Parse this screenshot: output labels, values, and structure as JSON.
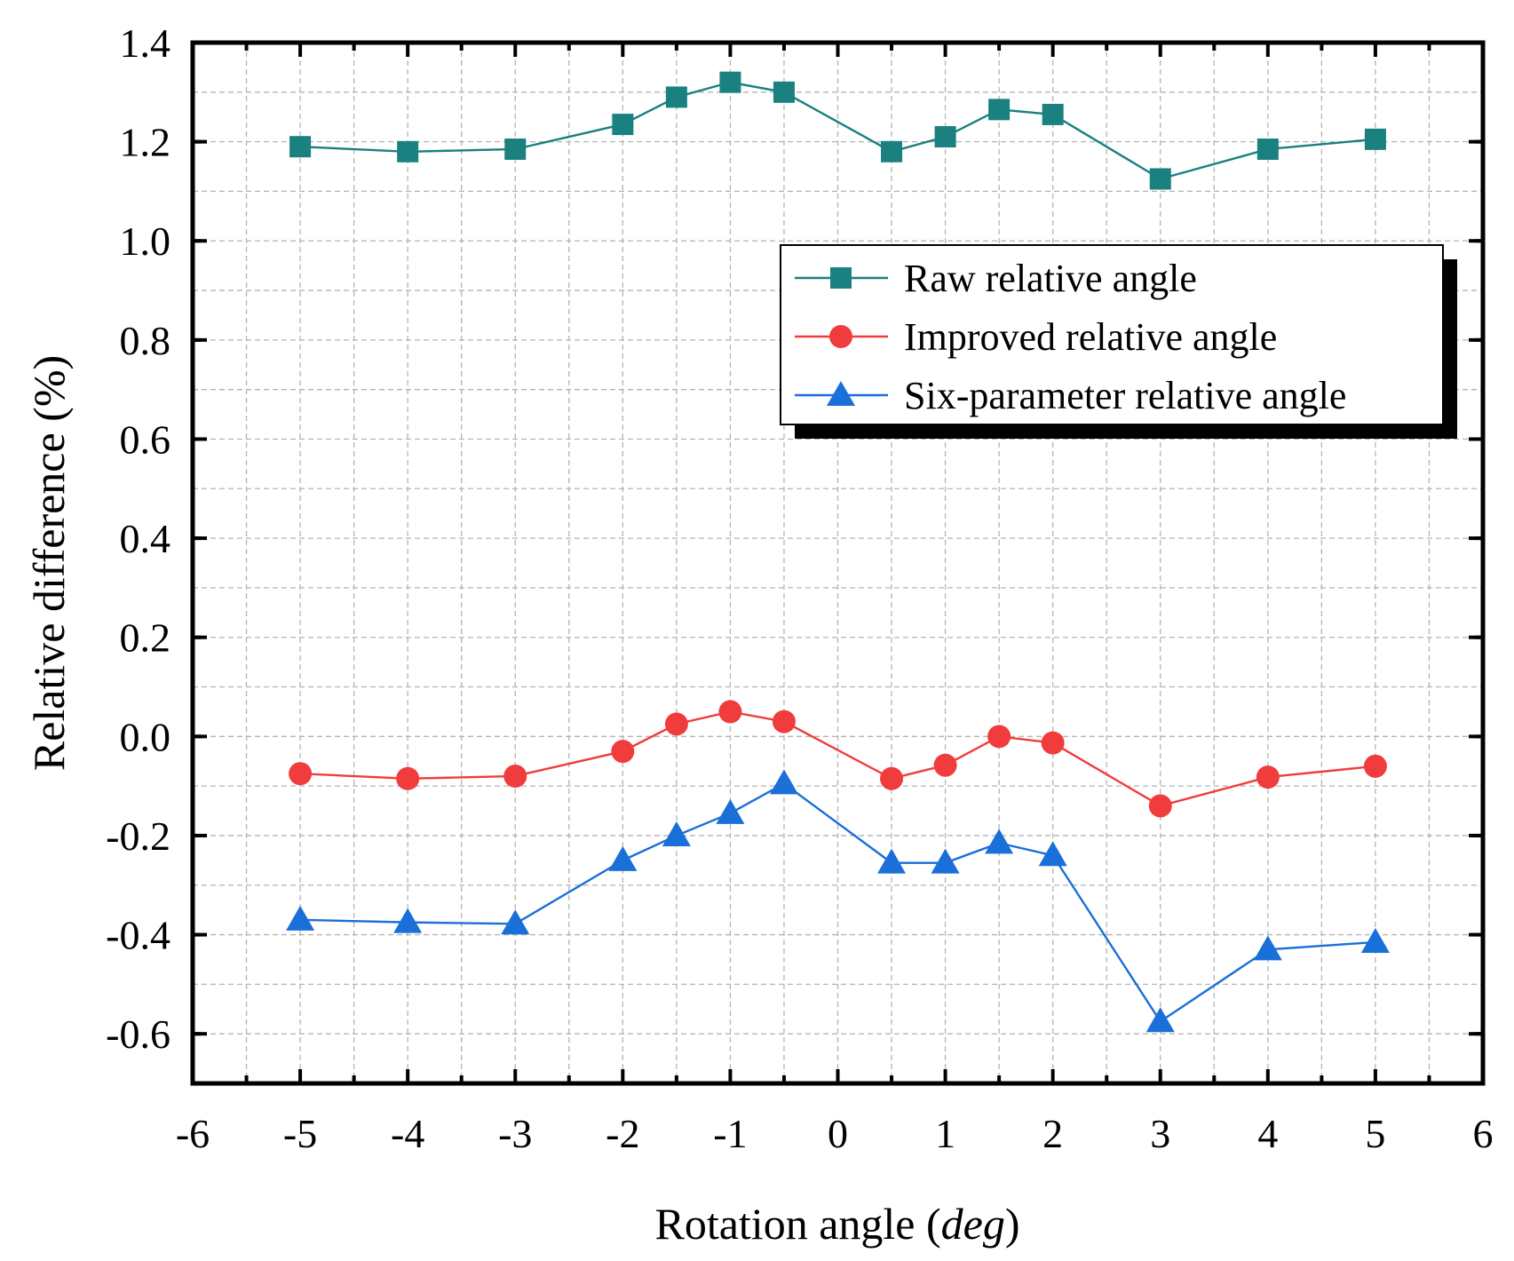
{
  "chart_data": {
    "type": "line",
    "xlabel": "Rotation angle (deg)",
    "xlabel_parts": [
      "Rotation angle (",
      "deg",
      ")"
    ],
    "ylabel": "Relative difference (%)",
    "xlim": [
      -6,
      6
    ],
    "ylim": [
      -0.7,
      1.4
    ],
    "x_ticks": [
      -6,
      -5,
      -4,
      -3,
      -2,
      -1,
      0,
      1,
      2,
      3,
      4,
      5,
      6
    ],
    "y_ticks": [
      -0.6,
      -0.4,
      -0.2,
      0.0,
      0.2,
      0.4,
      0.6,
      0.8,
      1.0,
      1.2,
      1.4
    ],
    "x_tick_labels": [
      "-6",
      "-5",
      "-4",
      "-3",
      "-2",
      "-1",
      "0",
      "1",
      "2",
      "3",
      "4",
      "5",
      "6"
    ],
    "y_tick_labels": [
      "-0.6",
      "-0.4",
      "-0.2",
      "0.0",
      "0.2",
      "0.4",
      "0.6",
      "0.8",
      "1.0",
      "1.2",
      "1.4"
    ],
    "grid": true,
    "legend_position": "top-right",
    "x": [
      -5,
      -4,
      -3,
      -2,
      -1.5,
      -1,
      -0.5,
      0.5,
      1,
      1.5,
      2,
      3,
      4,
      5
    ],
    "series": [
      {
        "name": "Raw relative angle",
        "color": "#1a8080",
        "marker": "square",
        "values": [
          1.19,
          1.18,
          1.185,
          1.235,
          1.29,
          1.32,
          1.3,
          1.18,
          1.21,
          1.265,
          1.255,
          1.125,
          1.185,
          1.205
        ]
      },
      {
        "name": "Improved relative angle",
        "color": "#f03c3c",
        "marker": "circle",
        "values": [
          -0.075,
          -0.085,
          -0.08,
          -0.03,
          0.025,
          0.05,
          0.03,
          -0.085,
          -0.058,
          0.0,
          -0.013,
          -0.14,
          -0.082,
          -0.06
        ]
      },
      {
        "name": "Six-parameter relative angle",
        "color": "#1a6fd8",
        "marker": "triangle",
        "values": [
          -0.37,
          -0.375,
          -0.378,
          -0.25,
          -0.2,
          -0.155,
          -0.095,
          -0.255,
          -0.255,
          -0.215,
          -0.24,
          -0.575,
          -0.43,
          -0.415
        ]
      }
    ]
  }
}
